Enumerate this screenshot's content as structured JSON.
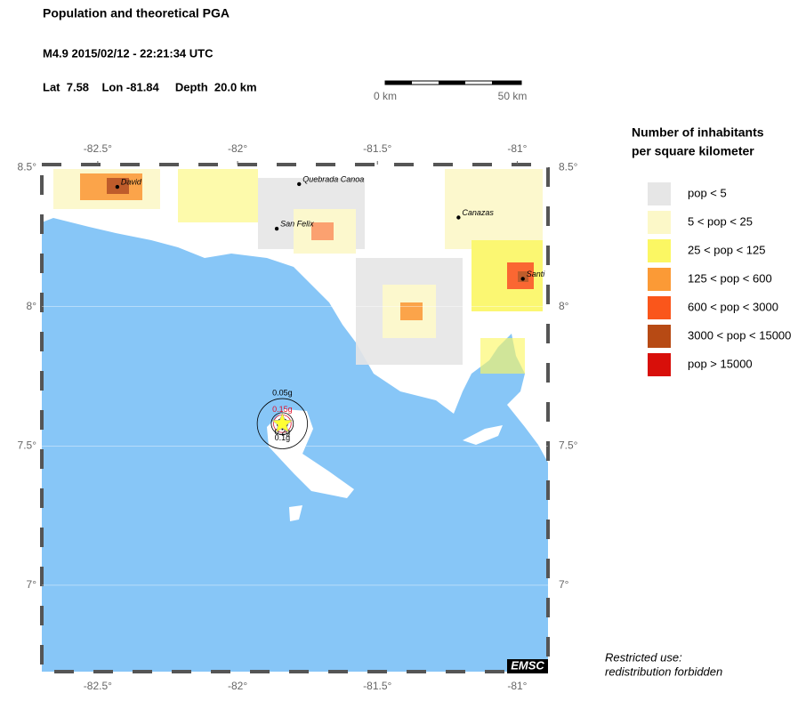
{
  "header": {
    "title": "Population and theoretical PGA",
    "event": "M4.9  2015/02/12 - 22:21:34 UTC",
    "location": "Lat  7.58    Lon -81.84     Depth  20.0 km"
  },
  "scale_bar": {
    "start": "0 km",
    "end": "50 km"
  },
  "map": {
    "lonlim": [
      -82.7,
      -80.89
    ],
    "latlim": [
      6.69,
      8.51
    ],
    "lon_ticks": [
      {
        "value": -82.5,
        "label": "-82.5°"
      },
      {
        "value": -82,
        "label": "-82°"
      },
      {
        "value": -81.5,
        "label": "-81.5°"
      },
      {
        "value": -81,
        "label": "-81°"
      }
    ],
    "lat_ticks": [
      {
        "value": 8.5,
        "label": "8.5°"
      },
      {
        "value": 8,
        "label": "8°"
      },
      {
        "value": 7.5,
        "label": "7.5°"
      },
      {
        "value": 7,
        "label": "7°"
      }
    ],
    "epicenter": {
      "lon": -81.84,
      "lat": 7.58,
      "color": "#ffff33"
    },
    "cities": [
      {
        "name": "David",
        "lon": -82.43,
        "lat": 8.43
      },
      {
        "name": "Quebrada Canoa",
        "lon": -81.78,
        "lat": 8.44
      },
      {
        "name": "San Felix",
        "lon": -81.86,
        "lat": 8.28
      },
      {
        "name": "Canazas",
        "lon": -81.21,
        "lat": 8.32
      },
      {
        "name": "Santi",
        "lon": -80.98,
        "lat": 8.1
      }
    ],
    "pga_contours": [
      {
        "label": "0.05g",
        "radius_km": 10,
        "color": "#000000"
      },
      {
        "label": "0.1g",
        "radius_km": 4.4,
        "color": "#000000"
      },
      {
        "label": "0.15g",
        "radius_km": 3.5,
        "color": "#e0102a"
      },
      {
        "label": "0.2g",
        "radius_km": 2.1,
        "color": "#000000"
      }
    ],
    "credit": "EMSC"
  },
  "legend": {
    "title": [
      "Number of inhabitants",
      "per square kilometer"
    ],
    "items": [
      {
        "label": "pop < 5",
        "color": "#e6e6e6"
      },
      {
        "label": "5 < pop < 25",
        "color": "#fcf8c8"
      },
      {
        "label": "25 < pop < 125",
        "color": "#fbf763"
      },
      {
        "label": "125 < pop < 600",
        "color": "#fb9a36"
      },
      {
        "label": "600 < pop < 3000",
        "color": "#fa561b"
      },
      {
        "label": "3000 < pop < 15000",
        "color": "#b74a14"
      },
      {
        "label": "pop > 15000",
        "color": "#d80f0a"
      }
    ]
  },
  "notice": [
    "Restricted use:",
    "redistribution forbidden"
  ]
}
